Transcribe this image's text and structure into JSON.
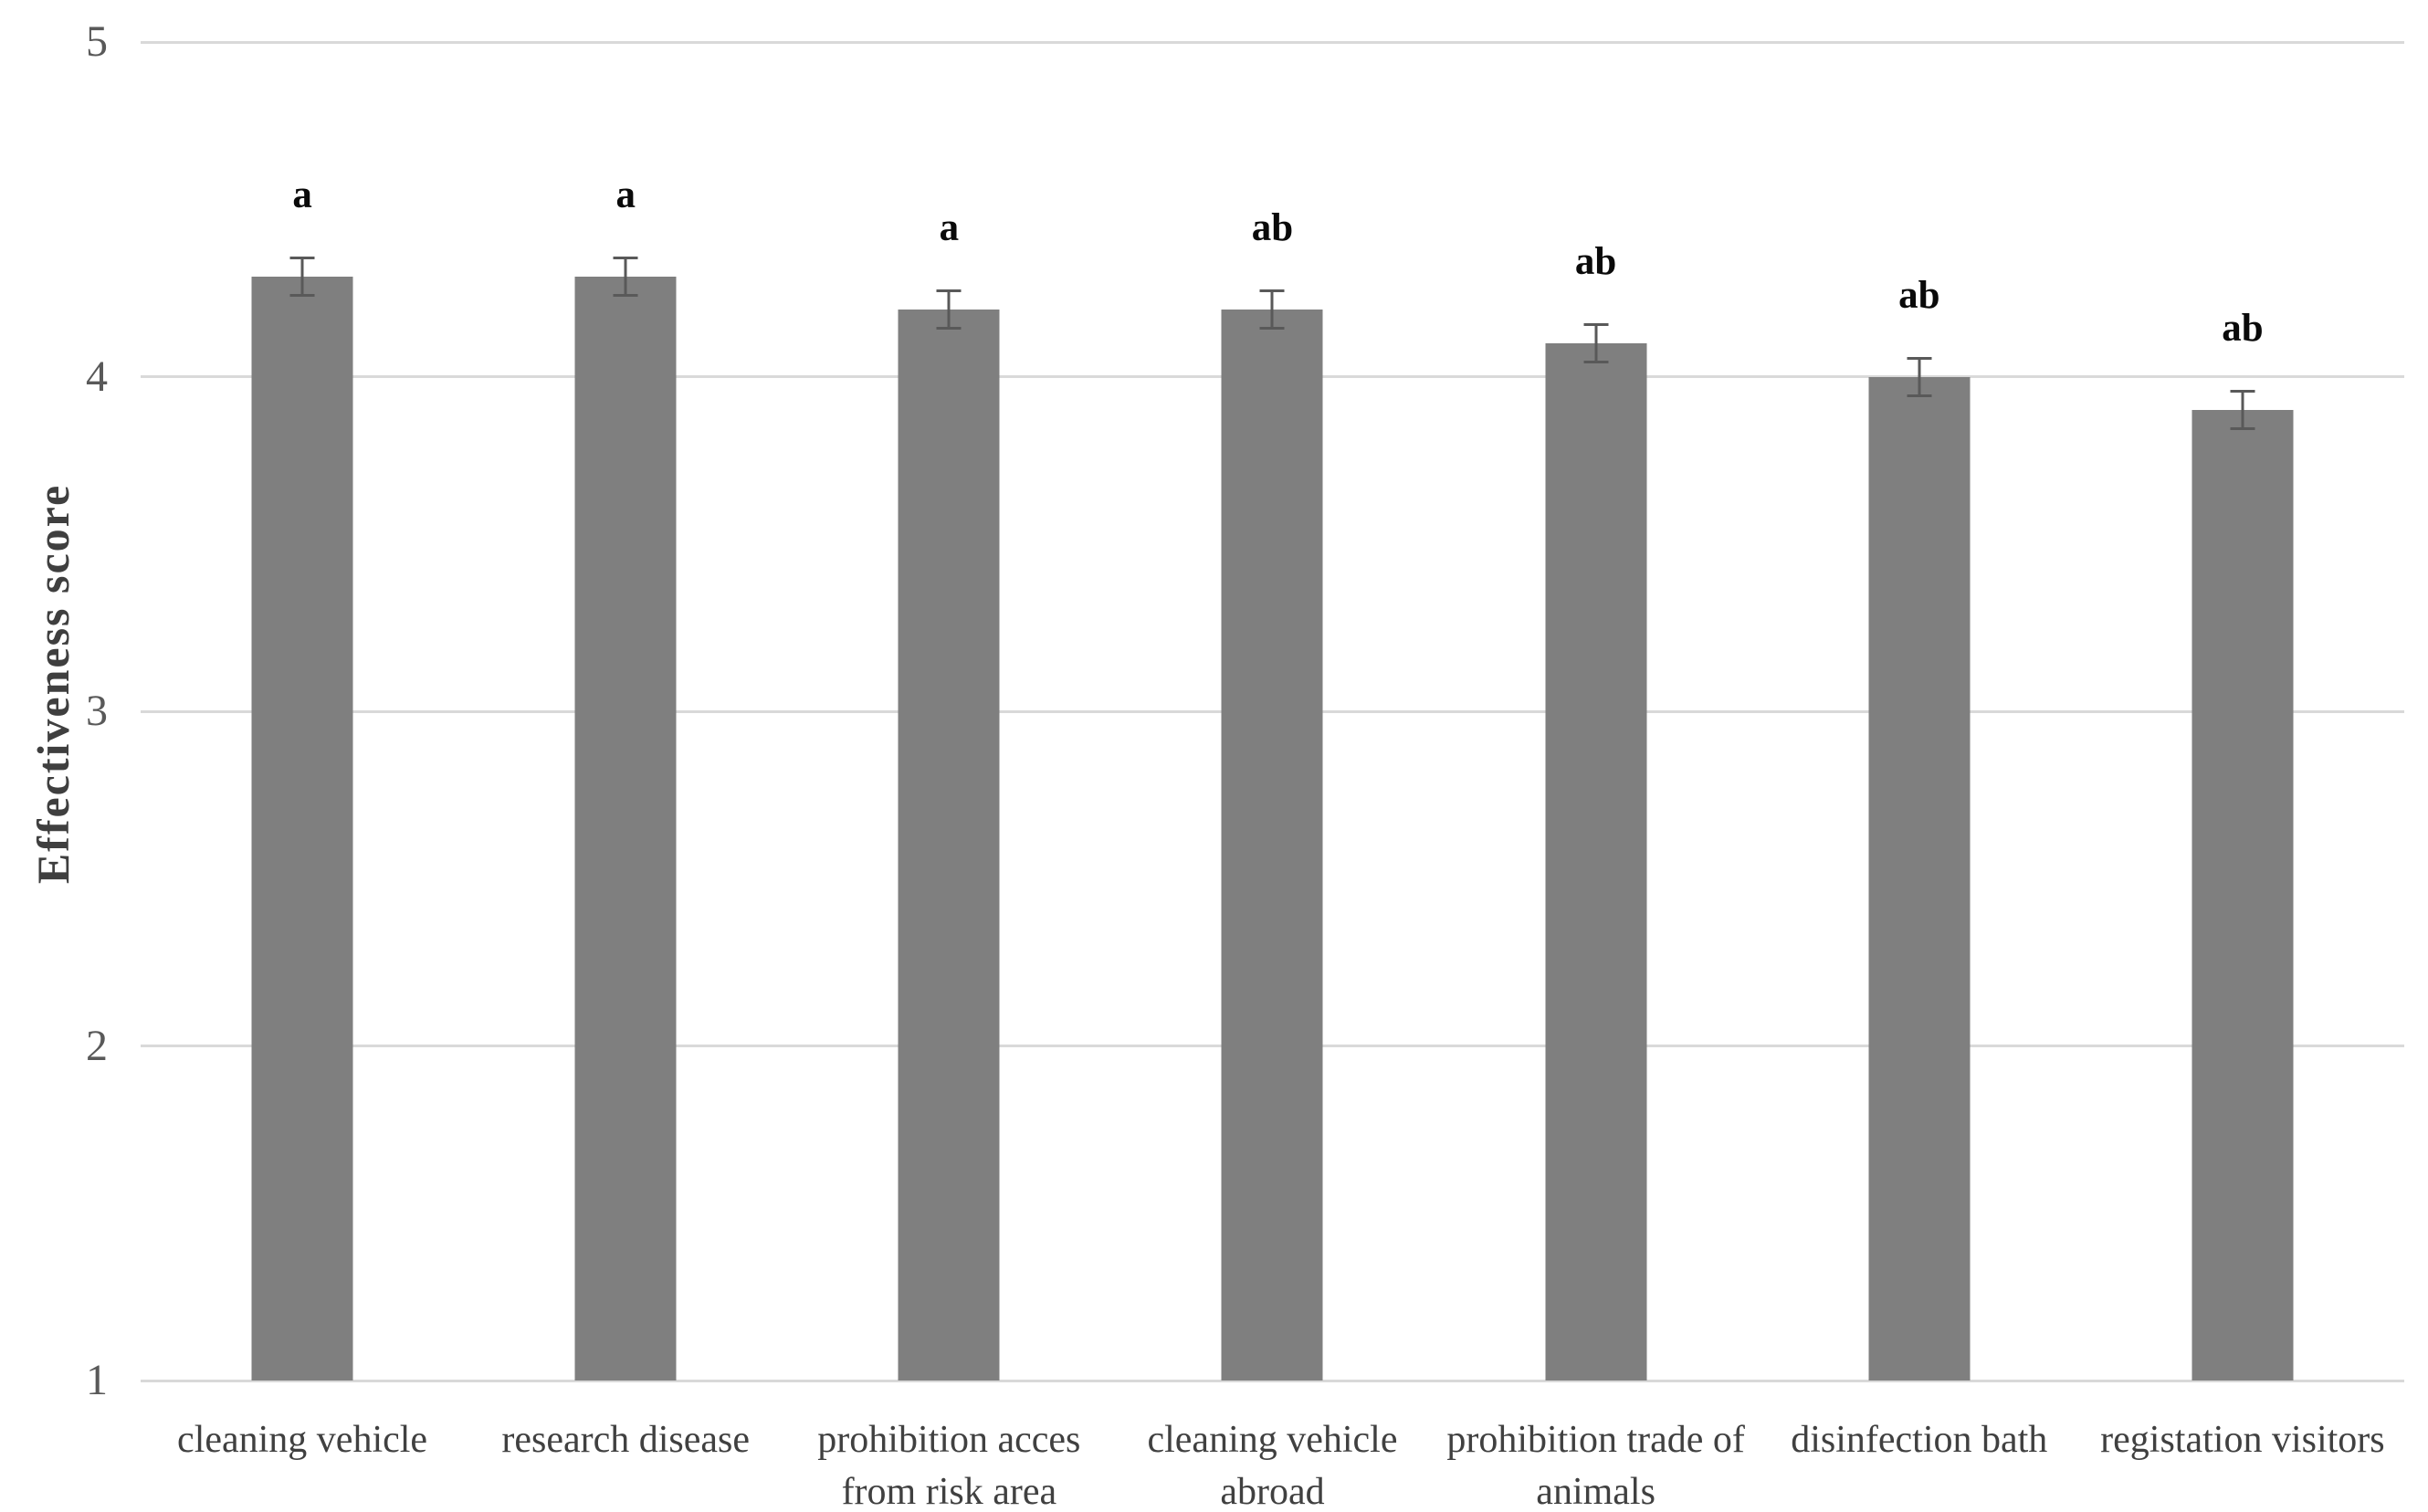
{
  "chart_data": {
    "type": "bar",
    "title": "",
    "xlabel": "",
    "ylabel": "Effectiveness score",
    "ylim": [
      1,
      5
    ],
    "yticks": [
      1,
      2,
      3,
      4,
      5
    ],
    "grid": true,
    "legend": null,
    "categories": [
      "cleaning vehicle",
      "research disease",
      "prohibition acces from risk area",
      "cleaning vehicle abroad",
      "prohibition trade of animals",
      "disinfection bath",
      "registation visitors"
    ],
    "tick_labels": [
      "cleaning vehicle",
      "research disease",
      "prohibition acces\nfrom risk area",
      "cleaning vehicle\nabroad",
      "prohibition trade of\nanimals",
      "disinfection bath",
      "registation visitors"
    ],
    "series": [
      {
        "name": "Effectiveness score",
        "values": [
          4.3,
          4.3,
          4.2,
          4.2,
          4.1,
          4.0,
          3.9
        ],
        "error_bars": [
          0.06,
          0.06,
          0.06,
          0.06,
          0.06,
          0.06,
          0.06
        ],
        "significance_letters": [
          "a",
          "a",
          "a",
          "ab",
          "ab",
          "ab",
          "ab"
        ]
      }
    ],
    "colors": {
      "bar": "#7f7f7f",
      "error_bar": "#595959",
      "gridline": "#d9d9d9",
      "axis_line": "#d9d9d9",
      "ytick_text": "#595959",
      "xtick_text": "#404040",
      "letter_text": "#0a0a0a",
      "background": "#ffffff"
    }
  }
}
